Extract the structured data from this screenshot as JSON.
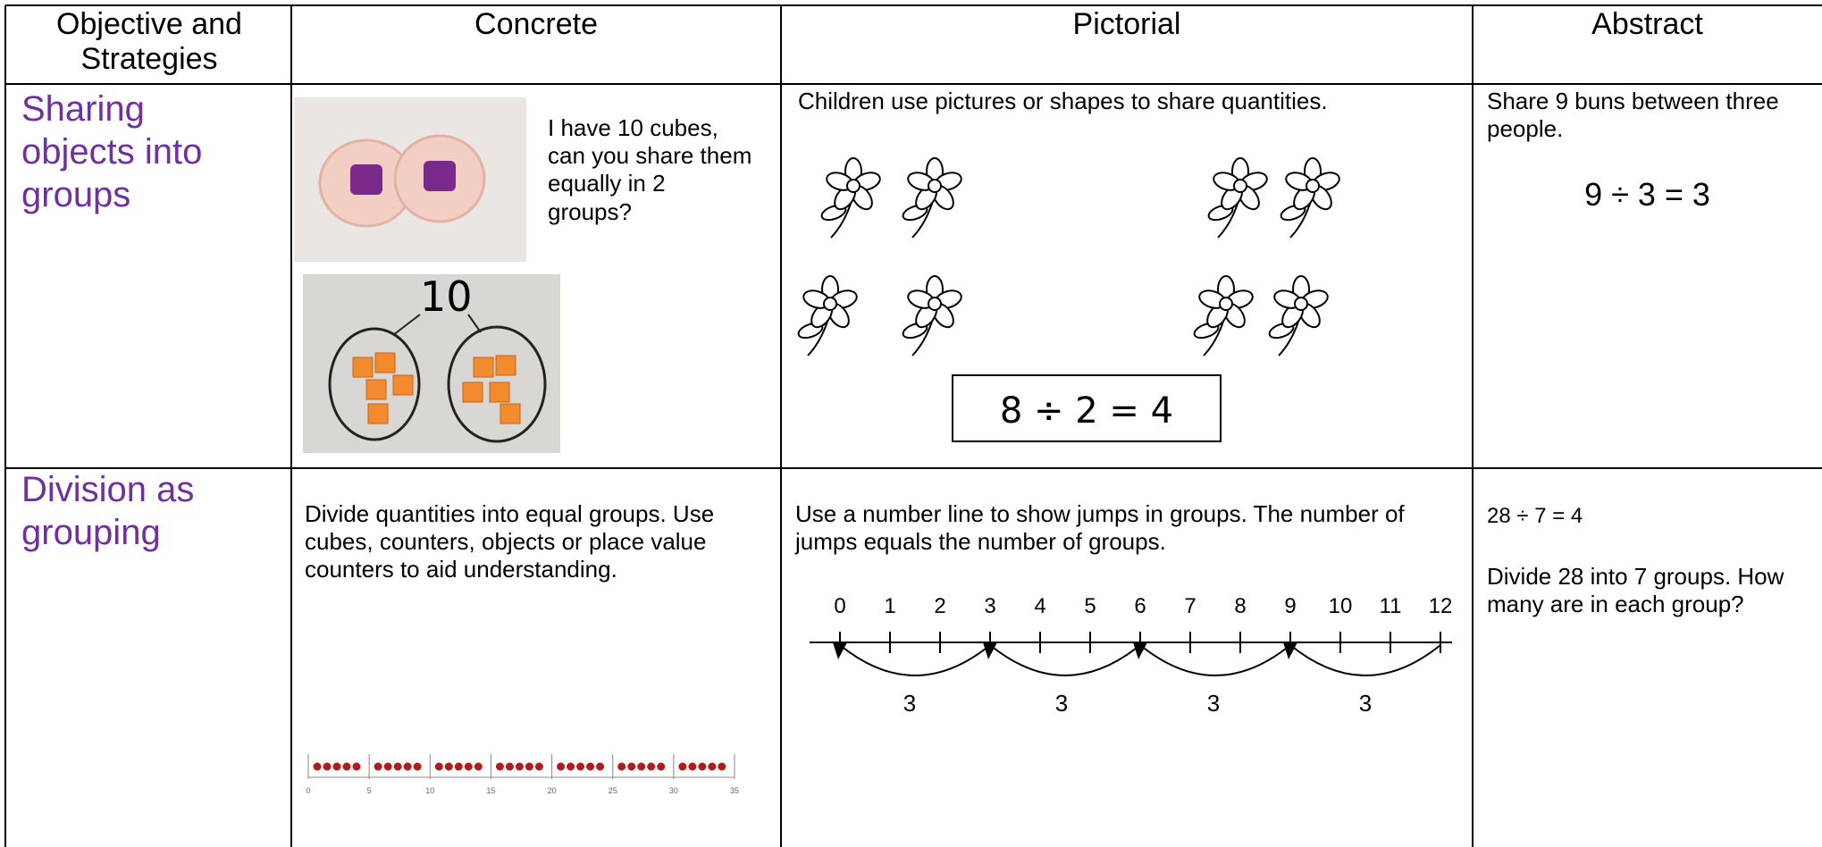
{
  "table": {
    "header": [
      "Objective and Strategies",
      "Concrete",
      "Pictorial",
      "Abstract"
    ],
    "rows": [
      {
        "objective": "Sharing objects into groups",
        "concrete": {
          "text": "I have 10 cubes, can you share them equally in 2 groups?",
          "photo_label": "10"
        },
        "pictorial": {
          "text": "Children use pictures or shapes to share quantities.",
          "equation": "8 ÷ 2 = 4"
        },
        "abstract": {
          "text": "Share 9 buns between three people.",
          "equation": "9 ÷ 3 = 3"
        }
      },
      {
        "objective": "Division as grouping",
        "concrete": {
          "text": "Divide quantities into equal groups. Use cubes, counters, objects or place value counters to aid understanding.",
          "bead_labels": [
            "0",
            "5",
            "10",
            "15",
            "20",
            "25",
            "30",
            "35"
          ]
        },
        "pictorial": {
          "text": "Use a number line to show jumps in groups. The number of jumps equals the number of groups.",
          "number_line_labels": [
            "0",
            "1",
            "2",
            "3",
            "4",
            "5",
            "6",
            "7",
            "8",
            "9",
            "10",
            "11",
            "12"
          ],
          "jump_labels": [
            "3",
            "3",
            "3",
            "3"
          ]
        },
        "abstract": {
          "equation": "28 ÷ 7 = 4",
          "text": "Divide 28 into 7 groups. How many are in each group?"
        }
      }
    ]
  }
}
